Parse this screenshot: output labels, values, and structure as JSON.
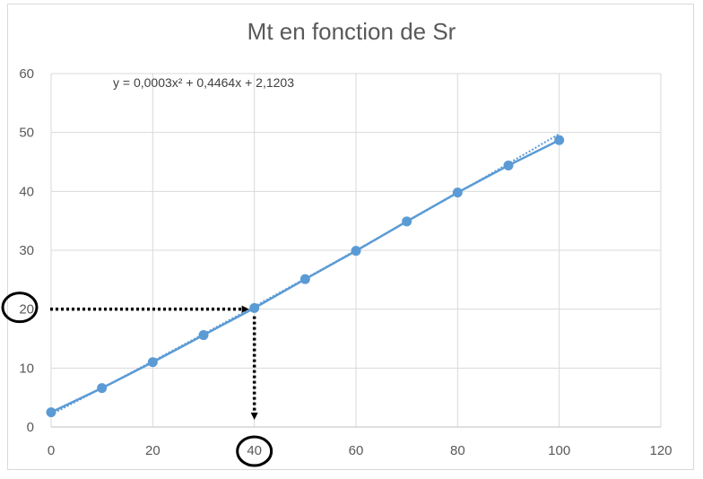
{
  "chart_data": {
    "type": "scatter",
    "title": "Mt en fonction de Sr",
    "xlabel": "",
    "ylabel": "",
    "xlim": [
      0,
      120
    ],
    "ylim": [
      0,
      60
    ],
    "x_ticks": [
      "0",
      "20",
      "40",
      "60",
      "80",
      "100",
      "120"
    ],
    "y_ticks": [
      "0",
      "10",
      "20",
      "30",
      "40",
      "50",
      "60"
    ],
    "grid": true,
    "series": [
      {
        "x": [
          0,
          10,
          20,
          30,
          40,
          50,
          60,
          70,
          80,
          90,
          100
        ],
        "y": [
          2.5,
          6.6,
          11.0,
          15.6,
          20.2,
          25.1,
          29.9,
          34.9,
          39.8,
          44.4,
          48.7
        ],
        "color": "#5b9bd5"
      }
    ],
    "trendline": {
      "type": "polynomial",
      "coefficients": [
        0.0003,
        0.4464,
        2.1203
      ],
      "equation": "y = 0,0003x² + 0,4464x + 2,1203"
    },
    "annotation": {
      "x_value": 40,
      "y_value": 20,
      "circled_x_label": "40",
      "circled_y_label": "20"
    }
  }
}
